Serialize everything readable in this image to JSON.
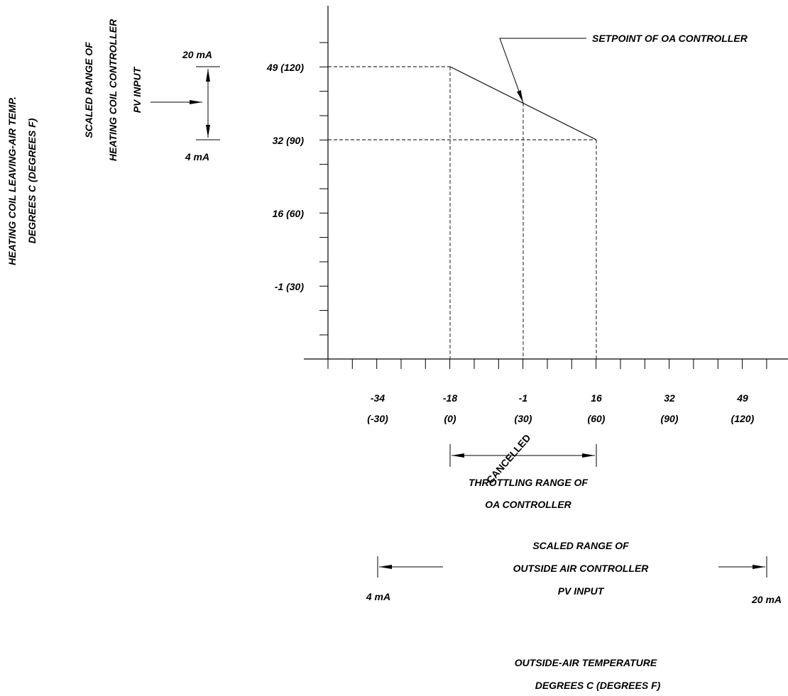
{
  "watermark": {
    "text": "CANCELLED",
    "color": "#d9d9d9"
  },
  "y_axis": {
    "title_line1": "HEATING COIL LEAVING-AIR TEMP.",
    "title_line2": "DEGREES C (DEGREES F)",
    "tick_labels": [
      "49 (120)",
      "32 (90)",
      "16 (60)",
      "-1 (30)"
    ]
  },
  "heating_coil_scale": {
    "line1": "SCALED RANGE OF",
    "line2": "HEATING COIL CONTROLLER",
    "line3": "PV INPUT",
    "high_label": "20 mA",
    "low_label": "4 mA"
  },
  "x_axis": {
    "tick_labels_c": [
      "-34",
      "-18",
      "-1",
      "16",
      "32",
      "49"
    ],
    "tick_labels_f": [
      "(-30)",
      "(0)",
      "(30)",
      "(60)",
      "(90)",
      "(120)"
    ],
    "title_line1": "OUTSIDE-AIR TEMPERATURE",
    "title_line2": "DEGREES C (DEGREES F)"
  },
  "setpoint_callout": "SETPOINT OF OA CONTROLLER",
  "throttling_range": {
    "line1": "THROTTLING RANGE OF",
    "line2": "OA CONTROLLER"
  },
  "outside_air_scale": {
    "line1": "SCALED RANGE OF",
    "line2": "OUTSIDE AIR CONTROLLER",
    "line3": "PV INPUT",
    "low_label": "4 mA",
    "high_label": "20 mA"
  },
  "chart_data": {
    "type": "line",
    "x_unit": "degrees F",
    "y_unit": "degrees F",
    "series": [
      {
        "x": [
          0,
          60
        ],
        "y": [
          120,
          90
        ]
      }
    ],
    "setpoint": {
      "x": 30,
      "y": 105
    }
  }
}
